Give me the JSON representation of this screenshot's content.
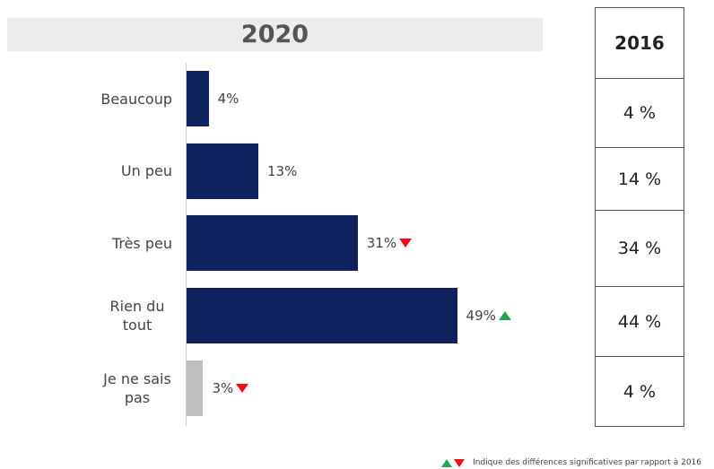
{
  "chart_data": {
    "type": "bar",
    "orientation": "horizontal",
    "title": "2020",
    "categories": [
      "Beaucoup",
      "Un peu",
      "Très peu",
      "Rien du tout",
      "Je ne sais pas"
    ],
    "values": [
      4,
      13,
      31,
      49,
      3
    ],
    "value_labels": [
      "4%",
      "13%",
      "31%",
      "49%",
      "3%"
    ],
    "colors": [
      "#0d225e",
      "#0d225e",
      "#0d225e",
      "#0d225e",
      "#bfbfbf"
    ],
    "xlim": [
      0,
      65
    ],
    "significance": [
      null,
      null,
      "down",
      "up",
      "down"
    ],
    "significance_colors": {
      "up": "#1fa84f",
      "down": "#e8101a"
    }
  },
  "comparison_table": {
    "header": "2016",
    "cells": [
      "4 %",
      "14 %",
      "34 %",
      "44 %",
      "4 %"
    ]
  },
  "footnote": "Indique des différences significatives par rapport à 2016"
}
